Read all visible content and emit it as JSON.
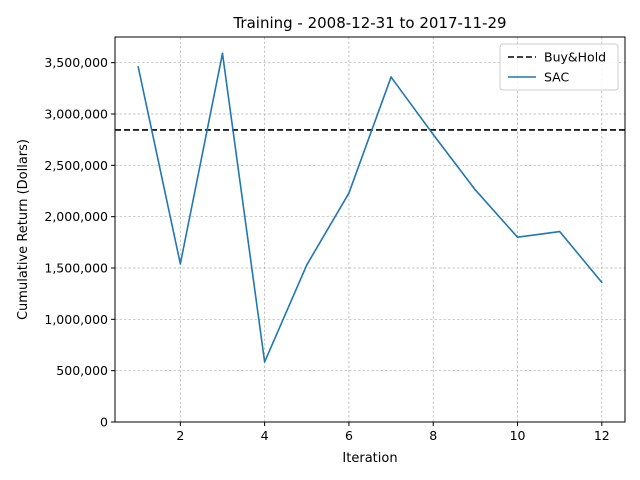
{
  "chart_data": {
    "type": "line",
    "title": "Training - 2008-12-31 to 2017-11-29",
    "xlabel": "Iteration",
    "ylabel": "Cumulative Return (Dollars)",
    "xlim": [
      0.45,
      12.55
    ],
    "ylim": [
      0,
      3750000
    ],
    "xticks": [
      2,
      4,
      6,
      8,
      10,
      12
    ],
    "yticks": [
      0,
      500000,
      1000000,
      1500000,
      2000000,
      2500000,
      3000000,
      3500000
    ],
    "xtick_labels": [
      "2",
      "4",
      "6",
      "8",
      "10",
      "12"
    ],
    "ytick_labels": [
      "0",
      "500,000",
      "1,000,000",
      "1,500,000",
      "2,000,000",
      "2,500,000",
      "3,000,000",
      "3,500,000"
    ],
    "grid": true,
    "legend_position": "top-right",
    "series": [
      {
        "name": "SAC",
        "style": "solid",
        "color": "#1f77b4",
        "x": [
          1,
          2,
          3,
          4,
          5,
          6,
          7,
          8,
          9,
          10,
          11,
          12
        ],
        "values": [
          3460000,
          1540000,
          3590000,
          585000,
          1530000,
          2230000,
          3360000,
          2800000,
          2260000,
          1800000,
          1855000,
          1360000
        ]
      }
    ],
    "reference_lines": [
      {
        "name": "Buy&Hold",
        "style": "dashed",
        "color": "#000000",
        "y": 2845000
      }
    ]
  }
}
